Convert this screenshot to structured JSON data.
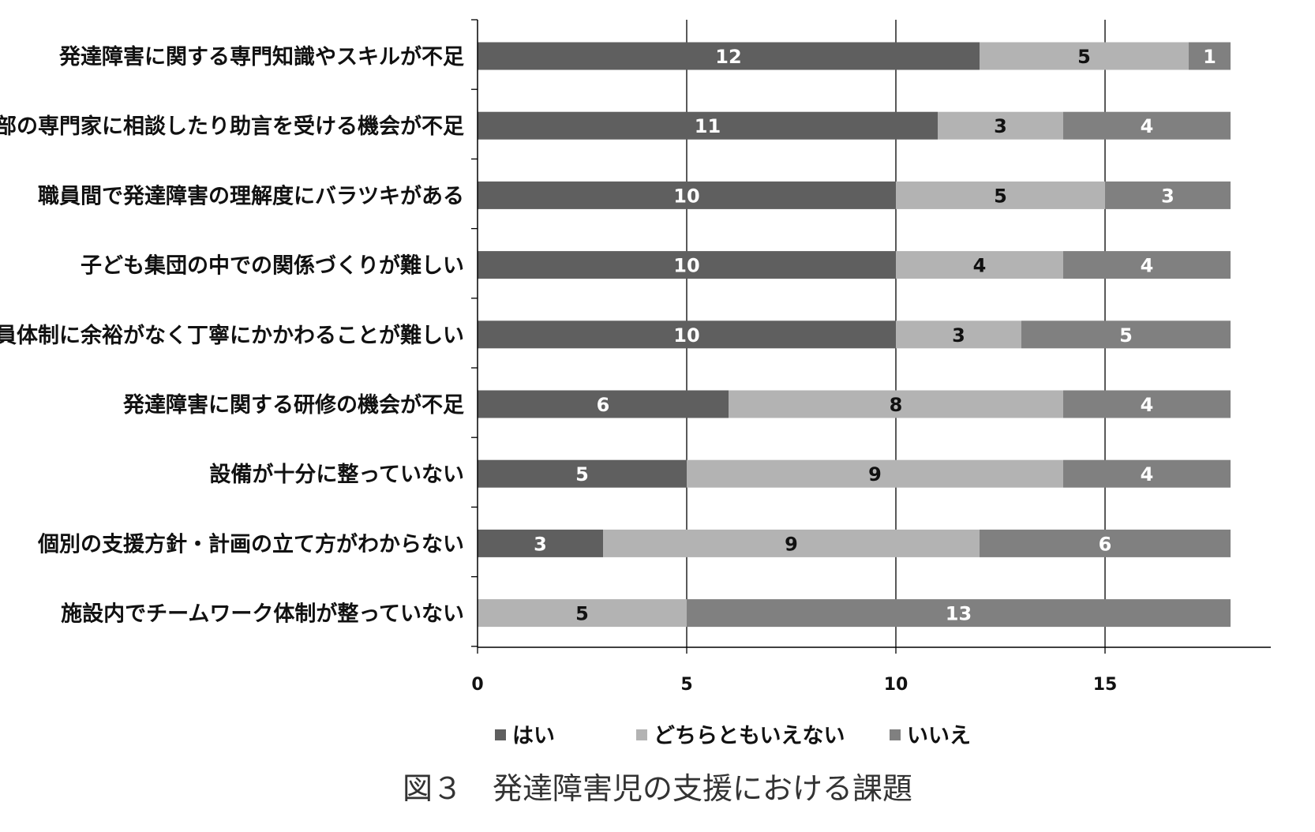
{
  "chart_data": {
    "type": "bar",
    "orientation": "horizontal",
    "stacked": true,
    "title": "",
    "caption": "図３　発達障害児の支援における課題",
    "xlabel": "",
    "ylabel": "",
    "xlim": [
      0,
      19
    ],
    "xticks": [
      0,
      5,
      10,
      15
    ],
    "grid": "vertical major gridlines",
    "legend_position": "bottom",
    "categories": [
      "発達障害に関する専門知識やスキルが不足",
      "外部の専門家に相談したり助言を受ける機会が不足",
      "職員間で発達障害の理解度にバラツキがある",
      "子ども集団の中での関係づくりが難しい",
      "人員体制に余裕がなく丁寧にかかわることが難しい",
      "発達障害に関する研修の機会が不足",
      "設備が十分に整っていない",
      "個別の支援方針・計画の立て方がわからない",
      "施設内でチームワーク体制が整っていない"
    ],
    "series": [
      {
        "name": "はい",
        "color": "#5f5f5f",
        "label_color": "#ffffff",
        "values": [
          12,
          11,
          10,
          10,
          10,
          6,
          5,
          3,
          0
        ]
      },
      {
        "name": "どちらともいえない",
        "color": "#b3b3b3",
        "label_color": "#111111",
        "values": [
          5,
          3,
          5,
          4,
          3,
          8,
          9,
          9,
          5
        ]
      },
      {
        "name": "いいえ",
        "color": "#808080",
        "label_color": "#ffffff",
        "values": [
          1,
          4,
          3,
          4,
          5,
          4,
          4,
          6,
          13
        ]
      }
    ]
  }
}
